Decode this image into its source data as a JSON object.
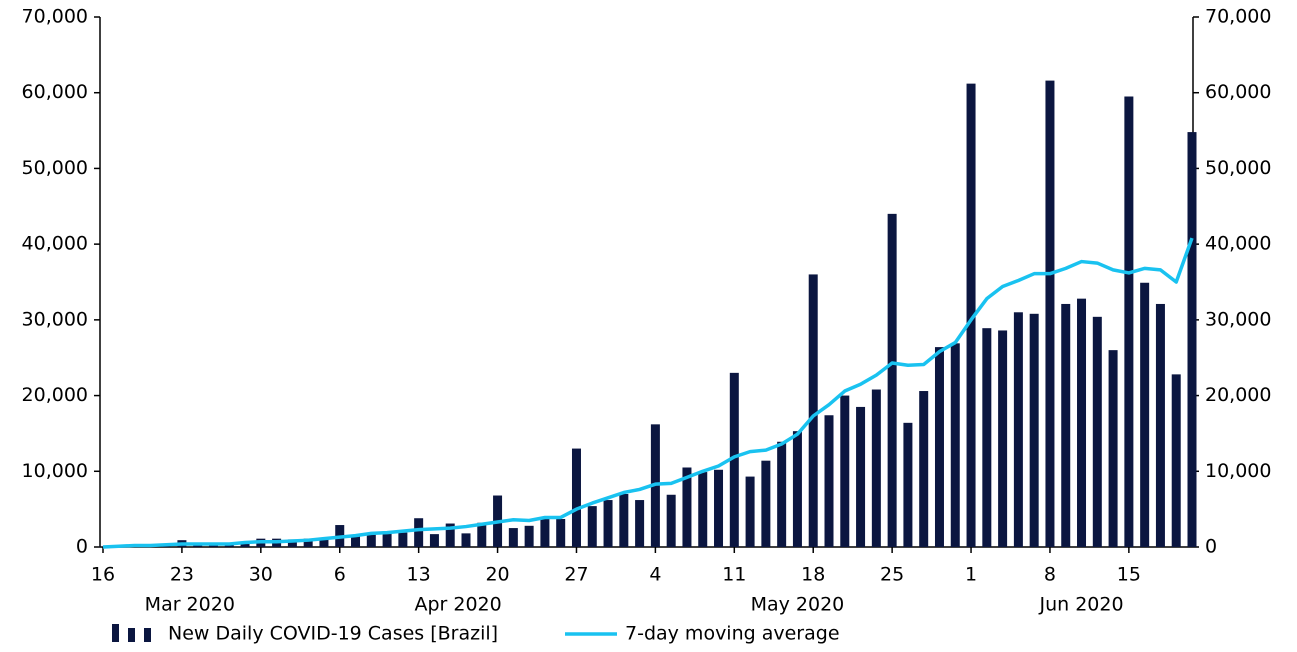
{
  "chart_data": {
    "type": "bar_line",
    "categories": [
      "2020-03-16",
      "2020-03-17",
      "2020-03-18",
      "2020-03-19",
      "2020-03-20",
      "2020-03-23",
      "2020-03-24",
      "2020-03-25",
      "2020-03-26",
      "2020-03-27",
      "2020-03-30",
      "2020-03-31",
      "2020-04-01",
      "2020-04-02",
      "2020-04-03",
      "2020-04-06",
      "2020-04-07",
      "2020-04-08",
      "2020-04-09",
      "2020-04-10",
      "2020-04-13",
      "2020-04-14",
      "2020-04-15",
      "2020-04-16",
      "2020-04-17",
      "2020-04-20",
      "2020-04-21",
      "2020-04-22",
      "2020-04-23",
      "2020-04-24",
      "2020-04-27",
      "2020-04-28",
      "2020-04-29",
      "2020-04-30",
      "2020-05-01",
      "2020-05-04",
      "2020-05-05",
      "2020-05-06",
      "2020-05-07",
      "2020-05-08",
      "2020-05-11",
      "2020-05-12",
      "2020-05-13",
      "2020-05-14",
      "2020-05-15",
      "2020-05-18",
      "2020-05-19",
      "2020-05-20",
      "2020-05-21",
      "2020-05-22",
      "2020-05-25",
      "2020-05-26",
      "2020-05-27",
      "2020-05-28",
      "2020-05-29",
      "2020-06-01",
      "2020-06-02",
      "2020-06-03",
      "2020-06-04",
      "2020-06-05",
      "2020-06-08",
      "2020-06-09",
      "2020-06-10",
      "2020-06-11",
      "2020-06-12",
      "2020-06-15",
      "2020-06-16",
      "2020-06-17",
      "2020-06-18",
      "2020-06-19"
    ],
    "series": [
      {
        "name": "New Daily COVID-19 Cases [Brazil]",
        "kind": "bar",
        "color": "#0b1640",
        "values": [
          50,
          100,
          150,
          200,
          300,
          900,
          300,
          300,
          300,
          500,
          1100,
          1100,
          1000,
          1100,
          1000,
          2900,
          1400,
          1800,
          1800,
          1900,
          3800,
          1700,
          3100,
          1800,
          3200,
          6800,
          2500,
          2800,
          3700,
          3700,
          13000,
          5400,
          6200,
          7000,
          6200,
          16200,
          6900,
          10500,
          9900,
          10200,
          23000,
          9300,
          11400,
          13900,
          15300,
          36000,
          17400,
          20000,
          18500,
          20800,
          44000,
          16400,
          20600,
          26400,
          26900,
          61200,
          28900,
          28600,
          31000,
          30800,
          61600,
          32100,
          32800,
          30400,
          26000,
          59500,
          34900,
          32100,
          22800,
          54800
        ]
      },
      {
        "name": "7-day moving average",
        "kind": "line",
        "color": "#19c2f0",
        "values": [
          0,
          100,
          200,
          200,
          300,
          400,
          400,
          400,
          400,
          600,
          700,
          700,
          800,
          900,
          1100,
          1300,
          1500,
          1800,
          1900,
          2100,
          2300,
          2400,
          2500,
          2700,
          3000,
          3300,
          3600,
          3500,
          3900,
          3900,
          5000,
          5800,
          6500,
          7200,
          7600,
          8300,
          8400,
          9200,
          10000,
          10700,
          11900,
          12600,
          12800,
          13600,
          14900,
          17300,
          18800,
          20600,
          21500,
          22700,
          24300,
          24000,
          24100,
          25800,
          27000,
          30000,
          32800,
          34400,
          35200,
          36100,
          36100,
          36800,
          37700,
          37500,
          36600,
          36200,
          36800,
          36600,
          35000,
          40800
        ]
      }
    ],
    "xticks": [
      {
        "value": "2020-03-16",
        "label": "16"
      },
      {
        "value": "2020-03-23",
        "label": "23"
      },
      {
        "value": "2020-03-30",
        "label": "30"
      },
      {
        "value": "2020-04-06",
        "label": "6"
      },
      {
        "value": "2020-04-13",
        "label": "13"
      },
      {
        "value": "2020-04-20",
        "label": "20"
      },
      {
        "value": "2020-04-27",
        "label": "27"
      },
      {
        "value": "2020-05-04",
        "label": "4"
      },
      {
        "value": "2020-05-11",
        "label": "11"
      },
      {
        "value": "2020-05-18",
        "label": "18"
      },
      {
        "value": "2020-05-25",
        "label": "25"
      },
      {
        "value": "2020-06-01",
        "label": "1"
      },
      {
        "value": "2020-06-08",
        "label": "8"
      },
      {
        "value": "2020-06-15",
        "label": "15"
      }
    ],
    "month_labels": [
      {
        "value": "2020-03",
        "label": "Mar 2020"
      },
      {
        "value": "2020-04",
        "label": "Apr 2020"
      },
      {
        "value": "2020-05",
        "label": "May 2020"
      },
      {
        "value": "2020-06",
        "label": "Jun 2020"
      }
    ],
    "ylim": [
      0,
      70000
    ],
    "yticks": [
      0,
      {
        "value": 10000,
        "label": "10,000"
      },
      {
        "value": 20000,
        "label": "20,000"
      },
      {
        "value": 30000,
        "label": "30,000"
      },
      {
        "value": 40000,
        "label": "40,000"
      },
      {
        "value": 50000,
        "label": "50,000"
      },
      {
        "value": 60000,
        "label": "60,000"
      },
      {
        "value": 70000,
        "label": "70,000"
      }
    ],
    "y2lim": [
      0,
      70000
    ],
    "y2ticks": [
      0,
      {
        "value": 10000,
        "label": "10,000"
      },
      {
        "value": 20000,
        "label": "20,000"
      },
      {
        "value": 30000,
        "label": "30,000"
      },
      {
        "value": 40000,
        "label": "40,000"
      },
      {
        "value": 50000,
        "label": "50,000"
      },
      {
        "value": 60000,
        "label": "60,000"
      },
      {
        "value": 70000,
        "label": "70,000"
      }
    ],
    "legend": "bottom"
  }
}
